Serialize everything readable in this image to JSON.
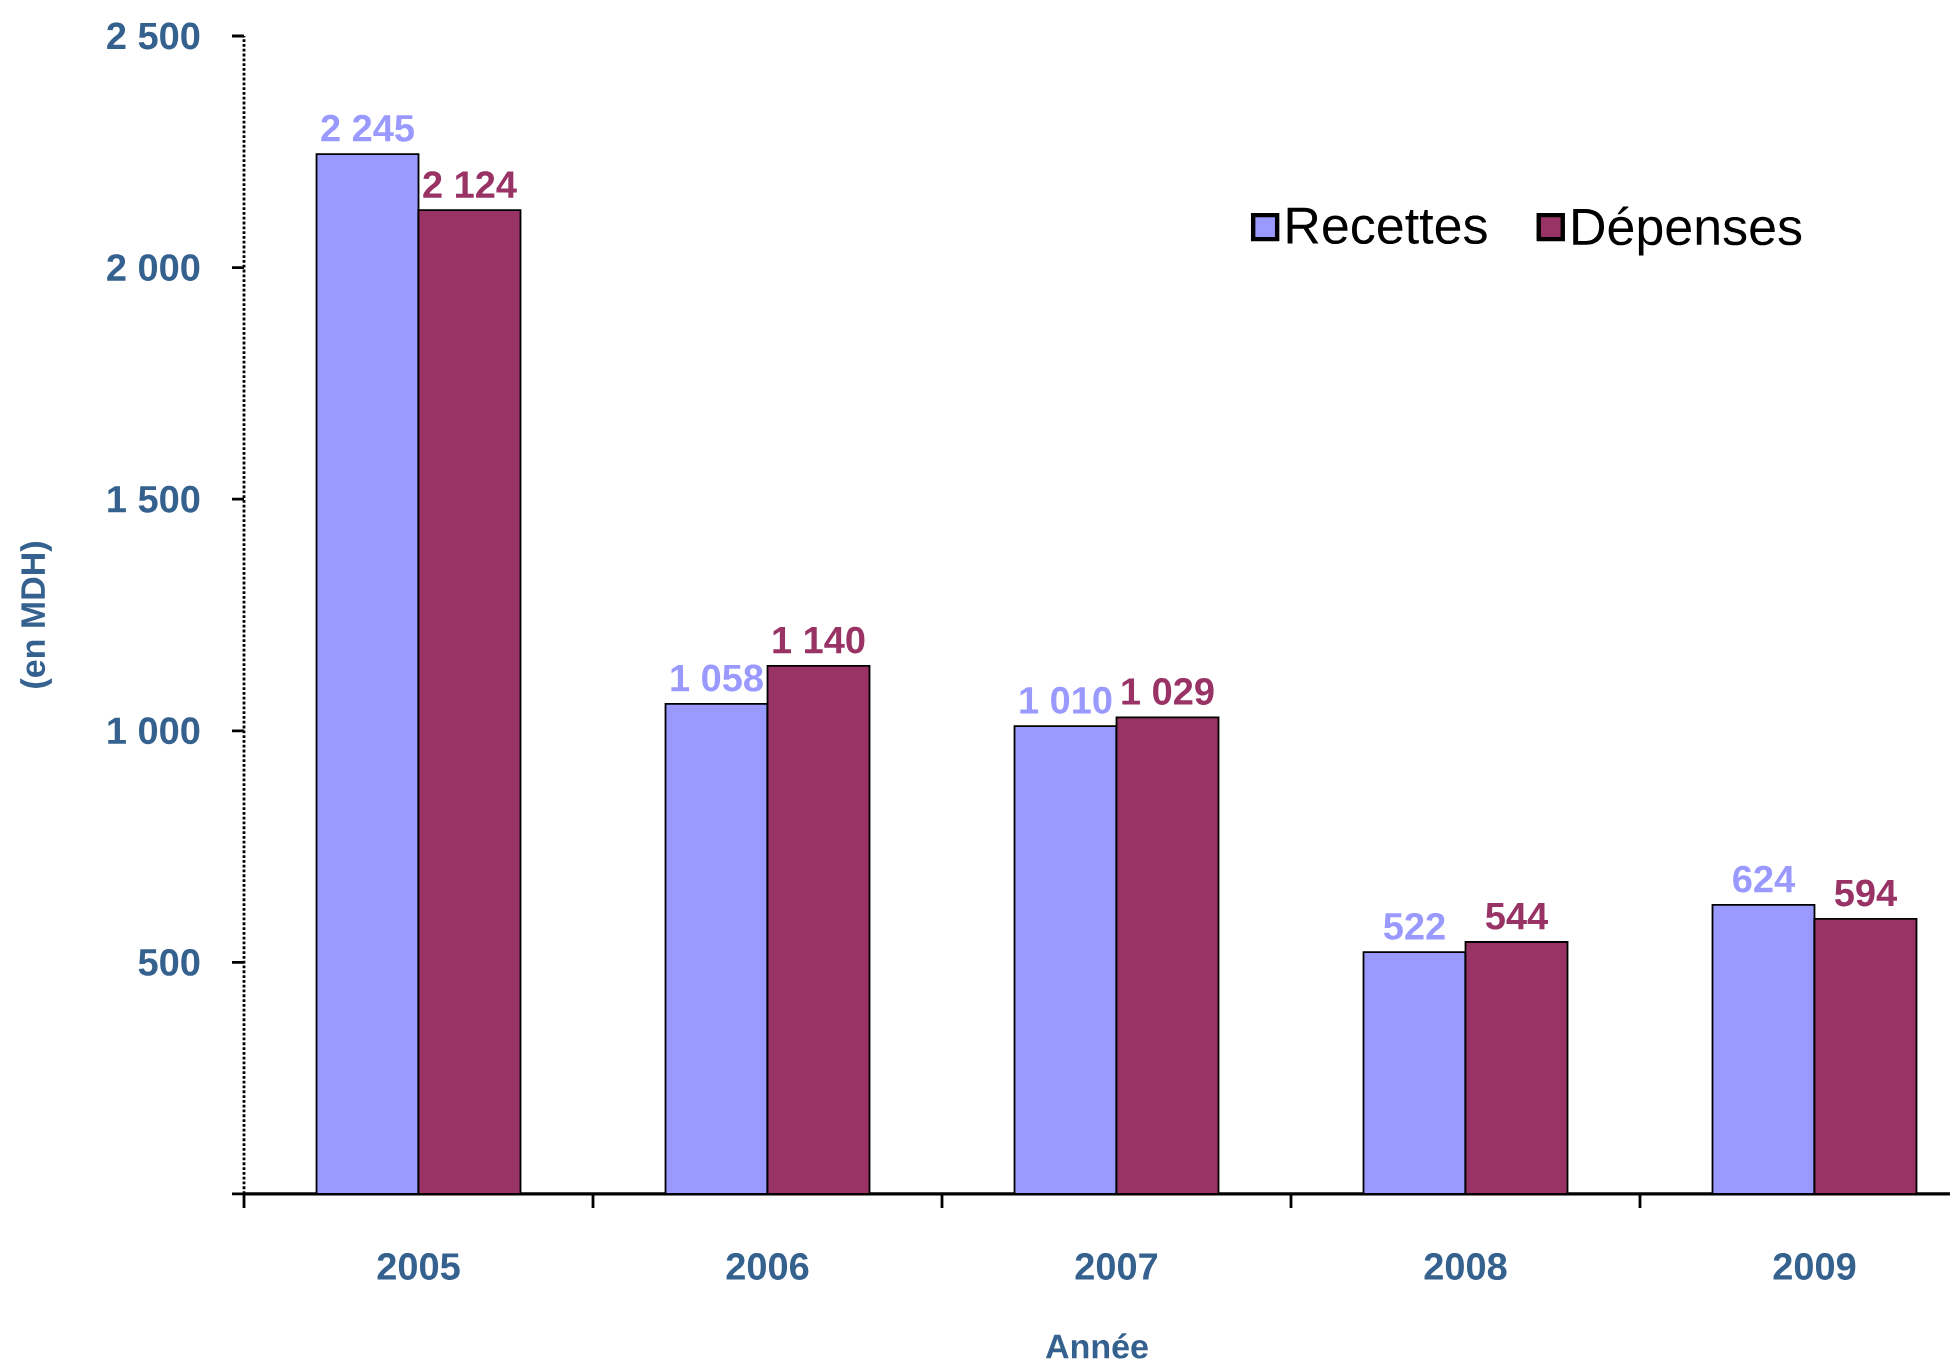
{
  "chart_data": {
    "type": "bar",
    "xlabel": "Année",
    "ylabel": "(en MDH)",
    "categories": [
      "2005",
      "2006",
      "2007",
      "2008",
      "2009"
    ],
    "series": [
      {
        "name": "Recettes",
        "color": "#9999ff",
        "values": [
          2245,
          1058,
          1010,
          522,
          624
        ],
        "value_labels": [
          "2 245",
          "1 058",
          "1 010",
          "522",
          "624"
        ]
      },
      {
        "name": "Dépenses",
        "color": "#993366",
        "values": [
          2124,
          1140,
          1029,
          544,
          594
        ],
        "value_labels": [
          "2 124",
          "1 140",
          "1 029",
          "544",
          "594"
        ]
      }
    ],
    "ylim": [
      0,
      2500
    ],
    "yticks": [
      {
        "value": 0,
        "label": null
      },
      500,
      {
        "value": 1000,
        "label": "1 000"
      },
      {
        "value": 1500,
        "label": "1 500"
      },
      {
        "value": 2000,
        "label": "2 000"
      },
      {
        "value": 2500,
        "label": "2 500"
      }
    ],
    "legend": "top right"
  }
}
